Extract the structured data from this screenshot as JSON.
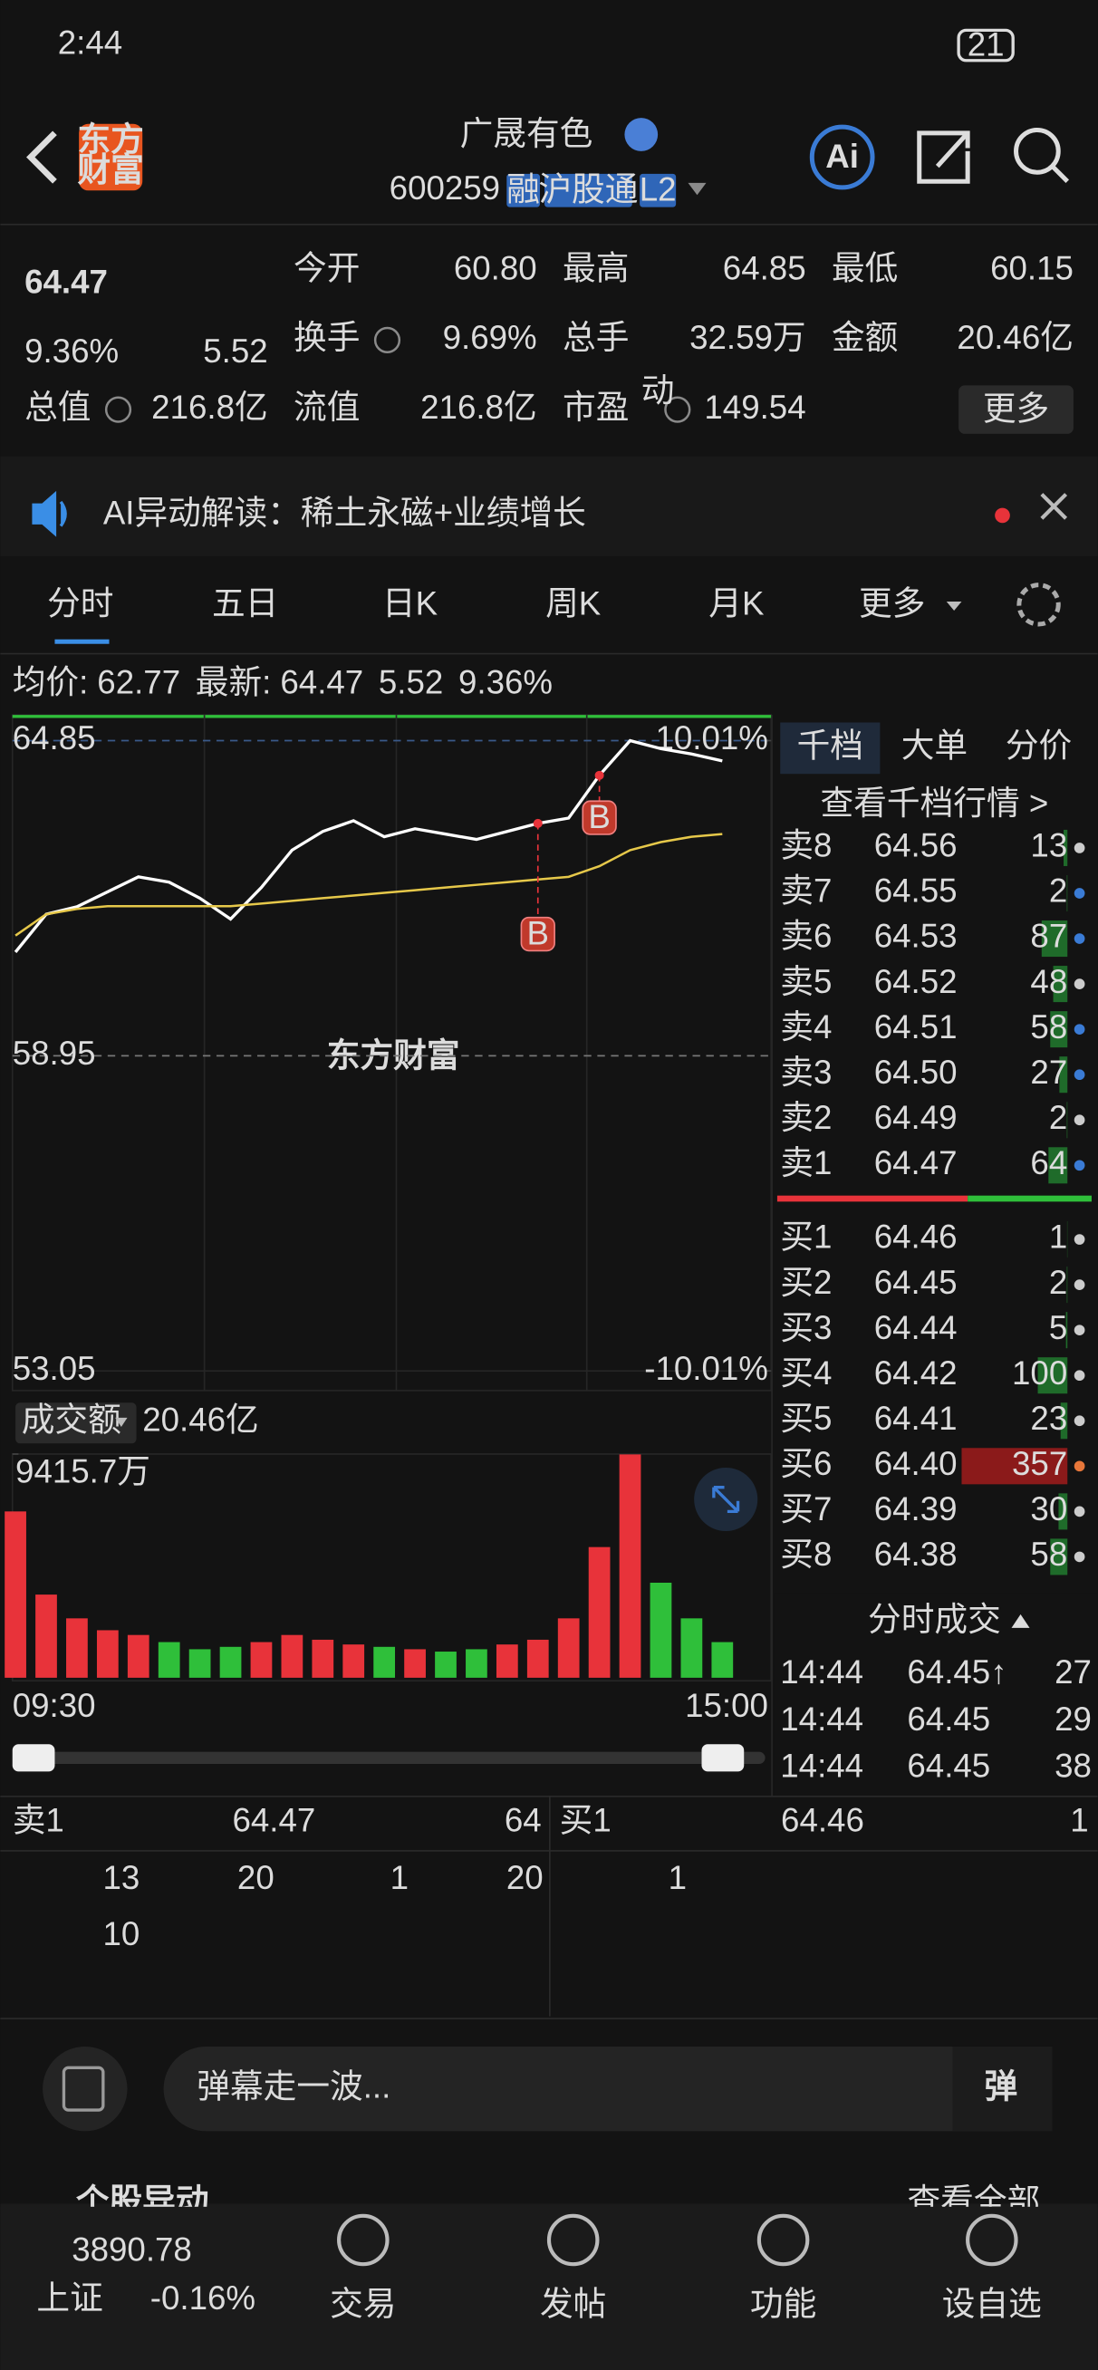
{
  "status_bar": {
    "time": "2:44",
    "battery": "21"
  },
  "header": {
    "logo": [
      "东方",
      "财富"
    ],
    "name": "广晟有色",
    "code": "600259",
    "tags": [
      "融",
      "沪股通",
      "L2"
    ],
    "ai": "Ai"
  },
  "quote": {
    "price": "64.47",
    "change_pct": "9.36%",
    "change": "5.52",
    "fields": [
      {
        "label": "今开",
        "value": "60.80"
      },
      {
        "label": "最高",
        "value": "64.85"
      },
      {
        "label": "最低",
        "value": "60.15"
      },
      {
        "label": "换手",
        "value": "9.69%"
      },
      {
        "label": "总手",
        "value": "32.59万"
      },
      {
        "label": "金额",
        "value": "20.46亿"
      },
      {
        "label": "总值",
        "value": "216.8亿"
      },
      {
        "label": "流值",
        "value": "216.8亿"
      },
      {
        "label": "市盈",
        "value": "149.54"
      }
    ],
    "pe_note": "动",
    "more": "更多"
  },
  "news": "AI异动解读：稀土永磁+业绩增长",
  "tabs": [
    "分时",
    "五日",
    "日K",
    "周K",
    "月K",
    "更多"
  ],
  "summary": {
    "avg_label": "均价:",
    "avg": "62.77",
    "latest_label": "最新:",
    "latest": "64.47",
    "change": "5.52",
    "change_pct": "9.36%"
  },
  "watermark": "东方财富",
  "markers": [
    "B",
    "B"
  ],
  "volume_label": "成交额",
  "volume_total": "20.46亿",
  "time_axis": [
    "09:30",
    "15:00"
  ],
  "chart_data": [
    {
      "type": "line",
      "series": [
        {
          "color": "#ffffff",
          "values": [
            60.89,
            61.6,
            61.74,
            62.02,
            62.3,
            62.2,
            61.9,
            61.51,
            62.1,
            62.8,
            63.15,
            63.35,
            63.05,
            63.2,
            63.1,
            63.0,
            63.15,
            63.3,
            63.4,
            64.2,
            64.85,
            64.7,
            64.6,
            64.47
          ]
        },
        {
          "color": "#e6c84a",
          "values": [
            61.2,
            61.6,
            61.7,
            61.75,
            61.75,
            61.75,
            61.75,
            61.75,
            61.8,
            61.85,
            61.9,
            61.95,
            62.0,
            62.05,
            62.1,
            62.15,
            62.2,
            62.25,
            62.3,
            62.5,
            62.8,
            62.95,
            63.05,
            63.1
          ]
        }
      ],
      "ylim": [
        53.05,
        64.85
      ],
      "yticks": [
        64.85,
        58.95,
        53.05
      ],
      "y2lim": [
        -10.01,
        10.01
      ],
      "y2ticks": [
        {
          "value": 10.01,
          "label": "10.01%"
        },
        {
          "value": -10.01,
          "label": "-10.01%"
        }
      ],
      "grid": true
    },
    {
      "type": "bar",
      "values": [
        7000,
        3500,
        2500,
        2000,
        1800,
        1500,
        1200,
        1300,
        1500,
        1800,
        1600,
        1400,
        1300,
        1200,
        1100,
        1200,
        1400,
        1600,
        2500,
        5500,
        9400,
        4000,
        2500,
        1500
      ],
      "colors": [
        "#e8333a",
        "#2fbf3a"
      ],
      "ylim": [
        0,
        9415.7
      ],
      "yticks": [
        {
          "value": 9415.7,
          "label": "9415.7万"
        }
      ]
    }
  ],
  "order_book": {
    "tabs": [
      "千档",
      "大单",
      "分价"
    ],
    "link": "查看千档行情 >",
    "asks": [
      {
        "label": "卖8",
        "price": "64.56",
        "qty": 13
      },
      {
        "label": "卖7",
        "price": "64.55",
        "qty": 2
      },
      {
        "label": "卖6",
        "price": "64.53",
        "qty": 87
      },
      {
        "label": "卖5",
        "price": "64.52",
        "qty": 48
      },
      {
        "label": "卖4",
        "price": "64.51",
        "qty": 58
      },
      {
        "label": "卖3",
        "price": "64.50",
        "qty": 27
      },
      {
        "label": "卖2",
        "price": "64.49",
        "qty": 2
      },
      {
        "label": "卖1",
        "price": "64.47",
        "qty": 64
      }
    ],
    "bids": [
      {
        "label": "买1",
        "price": "64.46",
        "qty": 1
      },
      {
        "label": "买2",
        "price": "64.45",
        "qty": 2
      },
      {
        "label": "买3",
        "price": "64.44",
        "qty": 5
      },
      {
        "label": "买4",
        "price": "64.42",
        "qty": 100
      },
      {
        "label": "买5",
        "price": "64.41",
        "qty": 23
      },
      {
        "label": "买6",
        "price": "64.40",
        "qty": 357
      },
      {
        "label": "买7",
        "price": "64.39",
        "qty": 30
      },
      {
        "label": "买8",
        "price": "64.38",
        "qty": 58
      }
    ]
  },
  "trades": {
    "title": "分时成交",
    "rows": [
      {
        "time": "14:44",
        "price": "64.45↑",
        "qty": "27"
      },
      {
        "time": "14:44",
        "price": "64.45",
        "qty": "29"
      },
      {
        "time": "14:44",
        "price": "64.45",
        "qty": "38"
      }
    ]
  },
  "queue": {
    "ask_label": "卖1",
    "ask_price": "64.47",
    "ask_qty": "64",
    "bid_label": "买1",
    "bid_price": "64.46",
    "bid_qty": "1",
    "ask_orders": [
      "13",
      "20",
      "1",
      "20",
      "10"
    ],
    "bid_orders": [
      "1"
    ]
  },
  "comment": {
    "placeholder": "弹幕走一波...",
    "button": "弹"
  },
  "section": {
    "title": "个股异动",
    "see_all": "查看全部"
  },
  "bottom_nav": {
    "index_value": "3890.78",
    "index_name": "上证",
    "index_change": "-0.16%",
    "items": [
      "交易",
      "发帖",
      "功能",
      "设自选"
    ]
  }
}
